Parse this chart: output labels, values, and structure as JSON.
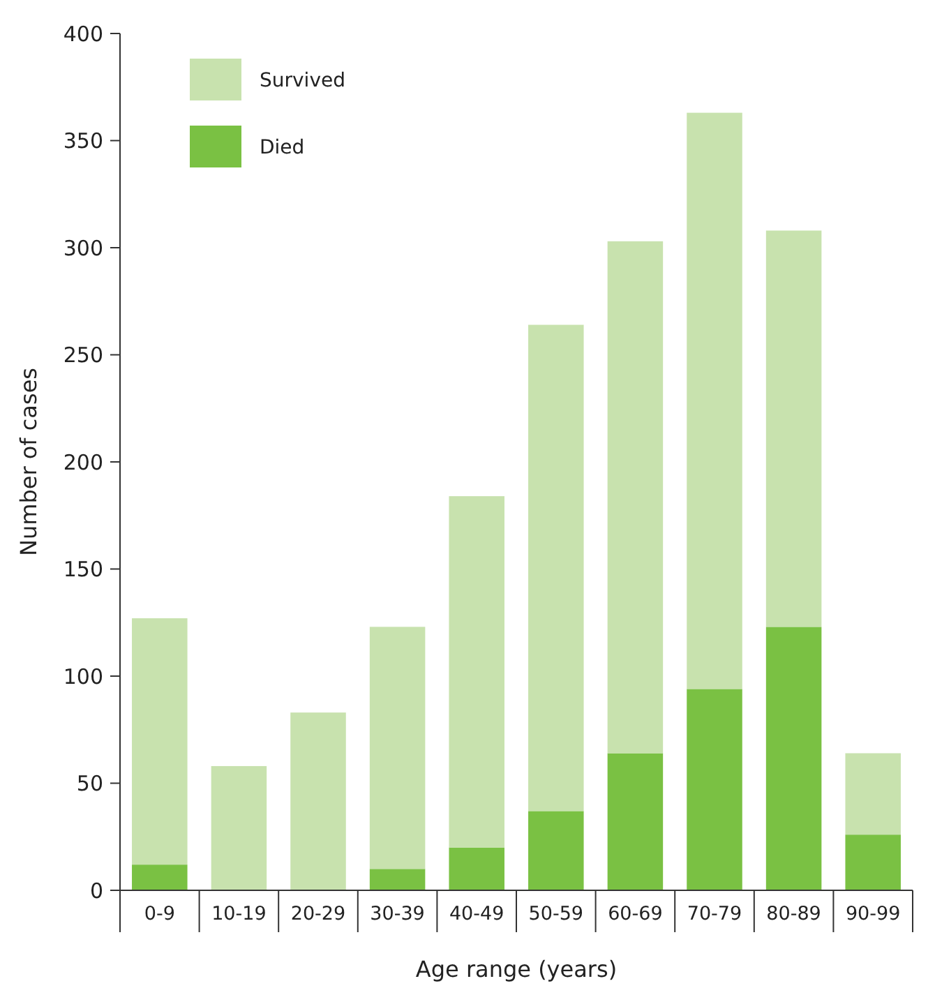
{
  "chart_data": {
    "type": "bar",
    "stacked": true,
    "xlabel": "Age range (years)",
    "ylabel": "Number of cases",
    "categories": [
      "0-9",
      "10-19",
      "20-29",
      "30-39",
      "40-49",
      "50-59",
      "60-69",
      "70-79",
      "80-89",
      "90-99"
    ],
    "series": [
      {
        "name": "Died",
        "color": "#7ac143",
        "values": [
          12,
          0,
          0,
          10,
          20,
          37,
          64,
          94,
          123,
          26
        ]
      },
      {
        "name": "Survived",
        "color": "#c8e2ae",
        "values": [
          115,
          58,
          83,
          113,
          164,
          227,
          239,
          269,
          185,
          38
        ]
      }
    ],
    "ylim": [
      0,
      400
    ],
    "yticks": [
      0,
      50,
      100,
      150,
      200,
      250,
      300,
      350,
      400
    ],
    "grid": false,
    "legend": "top left"
  }
}
